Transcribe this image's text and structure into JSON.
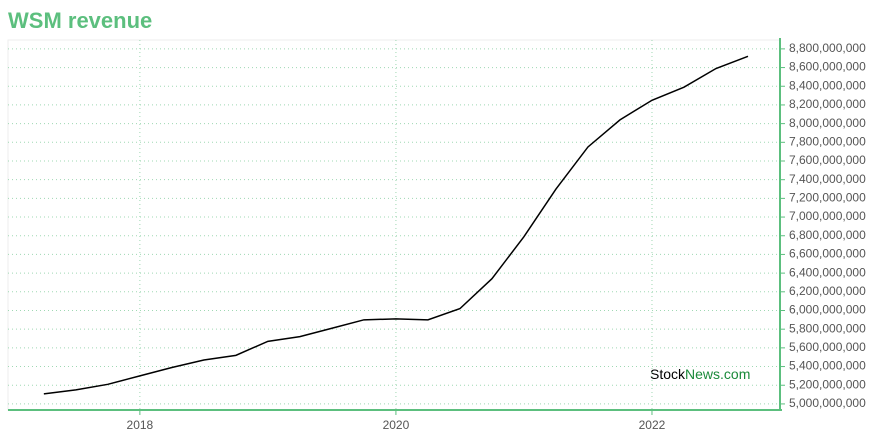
{
  "chart_data": {
    "type": "line",
    "title": "WSM revenue",
    "x": [
      2017.25,
      2017.5,
      2017.75,
      2018,
      2018.25,
      2018.5,
      2018.75,
      2019,
      2019.25,
      2019.5,
      2019.75,
      2020,
      2020.25,
      2020.5,
      2020.75,
      2021,
      2021.25,
      2021.5,
      2021.75,
      2022,
      2022.25,
      2022.5,
      2022.75
    ],
    "series": [
      {
        "name": "WSM revenue",
        "color": "#000000",
        "values": [
          5107000000,
          5150000000,
          5210000000,
          5300000000,
          5390000000,
          5470000000,
          5520000000,
          5670000000,
          5720000000,
          5810000000,
          5900000000,
          5910000000,
          5900000000,
          6020000000,
          6340000000,
          6790000000,
          7300000000,
          7750000000,
          8040000000,
          8250000000,
          8390000000,
          8590000000,
          8720000000
        ]
      }
    ],
    "xlim": [
      2016.97,
      2023
    ],
    "xticks": [
      2018,
      2020,
      2022
    ],
    "ylim": [
      4935000000,
      8895000000
    ],
    "yticks": [
      {
        "value": 5000000000,
        "label": "5,000,000,000"
      },
      {
        "value": 5200000000,
        "label": "5,200,000,000"
      },
      {
        "value": 5400000000,
        "label": "5,400,000,000"
      },
      {
        "value": 5600000000,
        "label": "5,600,000,000"
      },
      {
        "value": 5800000000,
        "label": "5,800,000,000"
      },
      {
        "value": 6000000000,
        "label": "6,000,000,000"
      },
      {
        "value": 6200000000,
        "label": "6,200,000,000"
      },
      {
        "value": 6400000000,
        "label": "6,400,000,000"
      },
      {
        "value": 6600000000,
        "label": "6,600,000,000"
      },
      {
        "value": 6800000000,
        "label": "6,800,000,000"
      },
      {
        "value": 7000000000,
        "label": "7,000,000,000"
      },
      {
        "value": 7200000000,
        "label": "7,200,000,000"
      },
      {
        "value": 7400000000,
        "label": "7,400,000,000"
      },
      {
        "value": 7600000000,
        "label": "7,600,000,000"
      },
      {
        "value": 7800000000,
        "label": "7,800,000,000"
      },
      {
        "value": 8000000000,
        "label": "8,000,000,000"
      },
      {
        "value": 8200000000,
        "label": "8,200,000,000"
      },
      {
        "value": 8400000000,
        "label": "8,400,000,000"
      },
      {
        "value": 8600000000,
        "label": "8,600,000,000"
      },
      {
        "value": 8800000000,
        "label": "8,800,000,000"
      }
    ],
    "grid": true,
    "axis_color": "#5cbf7e",
    "watermark": [
      "Stock",
      "News.com"
    ]
  }
}
